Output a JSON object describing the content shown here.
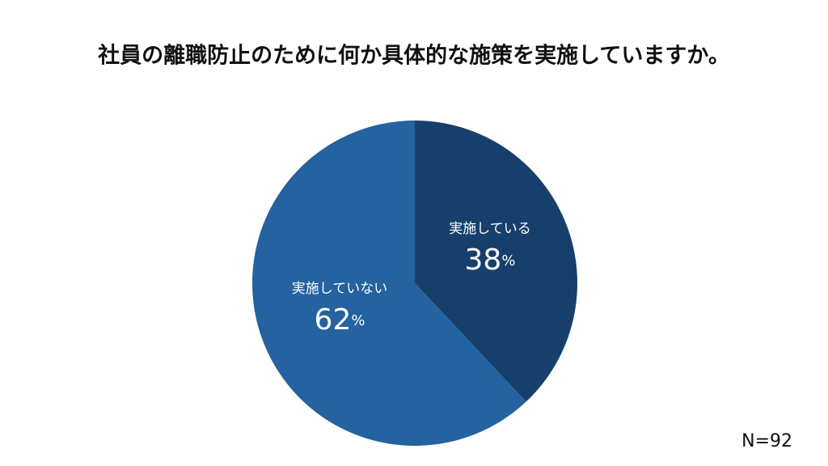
{
  "chart_data": {
    "type": "pie",
    "title": "社員の離職防止のために何か具体的な施策を実施していますか。",
    "categories": [
      "実施している",
      "実施していない"
    ],
    "values": [
      38,
      62
    ],
    "value_labels": [
      "38%",
      "62%"
    ],
    "colors": [
      "#173f6c",
      "#2462a0"
    ],
    "note": "N=92"
  }
}
